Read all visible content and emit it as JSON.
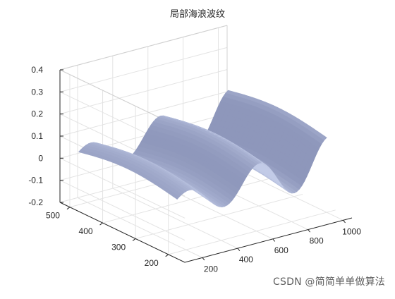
{
  "chart_data": {
    "type": "surface",
    "title": "局部海浪波纹",
    "xlabel": "",
    "ylabel": "",
    "zlabel": "",
    "x_ticks": [
      200,
      400,
      600,
      800,
      1000
    ],
    "y_ticks": [
      200,
      300,
      400,
      500
    ],
    "z_ticks": [
      -0.2,
      -0.1,
      0,
      0.1,
      0.2,
      0.3,
      0.4
    ],
    "x_tick_labels": [
      "200",
      "400",
      "600",
      "800",
      "1000"
    ],
    "y_tick_labels": [
      "200",
      "300",
      "400",
      "500"
    ],
    "z_tick_labels": [
      "-0.2",
      "-0.1",
      "0",
      "0.1",
      "0.2",
      "0.3",
      "0.4"
    ],
    "xlim": [
      100,
      1050
    ],
    "ylim": [
      150,
      530
    ],
    "zlim": [
      -0.2,
      0.4
    ],
    "grid": true,
    "view": {
      "azimuth": -37.5,
      "elevation": 30
    },
    "surface_color": "#a8b1d1",
    "surface": {
      "x_range": [
        150,
        1000
      ],
      "y_range": [
        200,
        500
      ],
      "description_values": {
        "wave_amplitude": 0.08,
        "wave_period_x": 480,
        "peak_height": 0.18,
        "trough_depth": -0.08
      }
    }
  },
  "watermark": "CSDN @简简单单做算法"
}
